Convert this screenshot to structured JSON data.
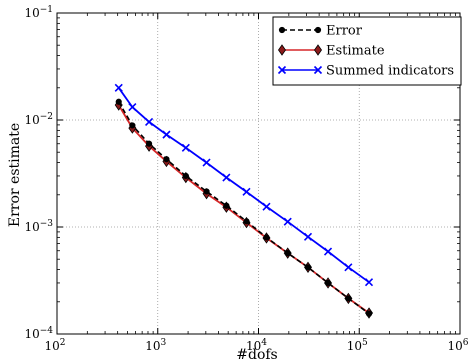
{
  "chart_data": {
    "type": "line",
    "xlabel": "#dofs",
    "ylabel": "Error estimate",
    "xscale": "log",
    "yscale": "log",
    "xlim": [
      100,
      1000000
    ],
    "ylim": [
      0.0001,
      0.1
    ],
    "grid": true,
    "legend_position": "top-right",
    "x_ticks": [
      {
        "value": 100,
        "base": "10",
        "exp": "2"
      },
      {
        "value": 1000,
        "base": "10",
        "exp": "3"
      },
      {
        "value": 10000,
        "base": "10",
        "exp": "4"
      },
      {
        "value": 100000,
        "base": "10",
        "exp": "5"
      },
      {
        "value": 1000000,
        "base": "10",
        "exp": "6"
      }
    ],
    "y_ticks": [
      {
        "value": 0.0001,
        "base": "10",
        "exp": "−4"
      },
      {
        "value": 0.001,
        "base": "10",
        "exp": "−3"
      },
      {
        "value": 0.01,
        "base": "10",
        "exp": "−2"
      },
      {
        "value": 0.1,
        "base": "10",
        "exp": "−1"
      }
    ],
    "series": [
      {
        "name": "Error",
        "color": "#000000",
        "line_style": "dashed",
        "marker": "dot",
        "x": [
          410,
          560,
          820,
          1220,
          1900,
          3050,
          4800,
          7600,
          12000,
          19500,
          31000,
          49000,
          78000,
          125000
        ],
        "y": [
          0.0148,
          0.0089,
          0.006,
          0.0043,
          0.003,
          0.00215,
          0.00158,
          0.00113,
          0.0008,
          0.00057,
          0.00042,
          0.0003,
          0.000215,
          0.000155
        ]
      },
      {
        "name": "Estimate",
        "color": "#d62728",
        "line_style": "solid",
        "marker": "diamond",
        "x": [
          410,
          560,
          820,
          1220,
          1900,
          3050,
          4800,
          7600,
          12000,
          19500,
          31000,
          49000,
          78000,
          125000
        ],
        "y": [
          0.0138,
          0.0084,
          0.0057,
          0.0041,
          0.0029,
          0.00205,
          0.00153,
          0.0011,
          0.00079,
          0.00057,
          0.00042,
          0.0003,
          0.000215,
          0.000157
        ]
      },
      {
        "name": "Summed indicators",
        "color": "#0000ff",
        "line_style": "solid",
        "marker": "x",
        "x": [
          410,
          560,
          820,
          1220,
          1900,
          3050,
          4800,
          7600,
          12000,
          19500,
          31000,
          49000,
          78000,
          125000
        ],
        "y": [
          0.02,
          0.0132,
          0.0096,
          0.0073,
          0.0055,
          0.004,
          0.0029,
          0.00213,
          0.00155,
          0.00112,
          0.00081,
          0.00059,
          0.00042,
          0.000305
        ]
      }
    ]
  }
}
